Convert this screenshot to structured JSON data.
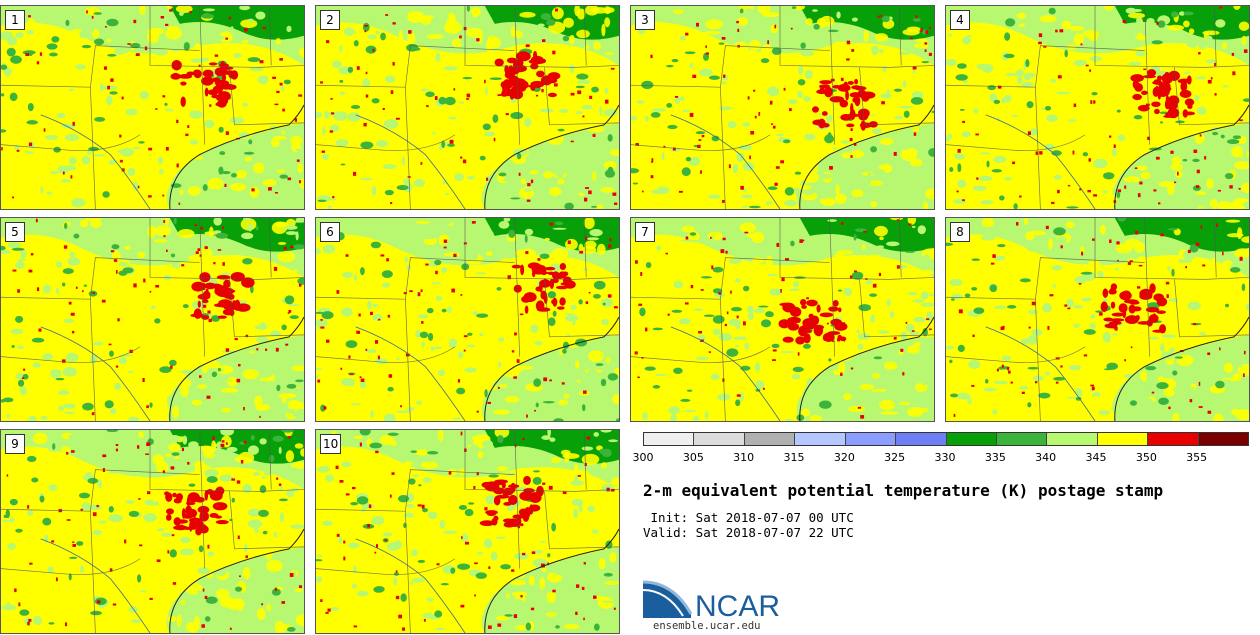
{
  "title": "2-m equivalent potential temperature (K) postage stamp",
  "init_line": " Init: Sat 2018-07-07 00 UTC",
  "valid_line": "Valid: Sat 2018-07-07 22 UTC",
  "panels": [
    {
      "member": "1"
    },
    {
      "member": "2"
    },
    {
      "member": "3"
    },
    {
      "member": "4"
    },
    {
      "member": "5"
    },
    {
      "member": "6"
    },
    {
      "member": "7"
    },
    {
      "member": "8"
    },
    {
      "member": "9"
    },
    {
      "member": "10"
    }
  ],
  "colorbar": {
    "tick_labels": [
      "300",
      "305",
      "310",
      "315",
      "320",
      "325",
      "330",
      "335",
      "340",
      "345",
      "350",
      "355"
    ],
    "colors": [
      "#efefef",
      "#dcdcdc",
      "#b0b0b0",
      "#b4c8ff",
      "#8c9cff",
      "#6e7ef5",
      "#08a008",
      "#3cb43c",
      "#b8f870",
      "#ffff00",
      "#e60000",
      "#7a0000"
    ]
  },
  "map_colors": {
    "land_base": "#b8f870",
    "yellow": "#ffff00",
    "green": "#3cb43c",
    "dark_green": "#08a008",
    "red": "#e60000"
  },
  "logo": {
    "text": "NCAR",
    "url": "ensemble.ucar.edu"
  }
}
